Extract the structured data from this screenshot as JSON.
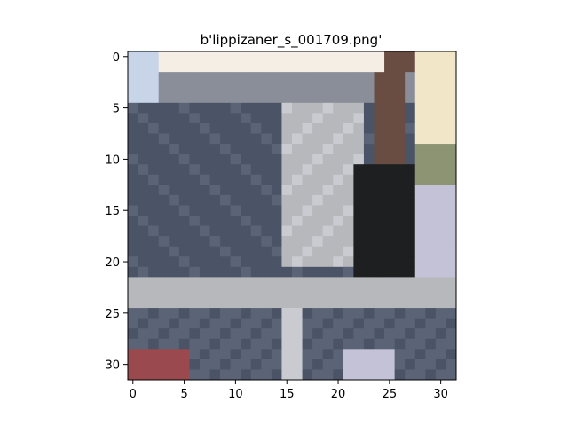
{
  "title": "b'lippizaner_s_001709.png'",
  "image": {
    "grid_size": 32,
    "description_colors": {
      "sky": "#efe8d6",
      "bright": "#f4eee4",
      "cream": "#f1e6c8",
      "dark_slate": "#4a5466",
      "slate": "#5a6476",
      "mid_gray": "#8a8e98",
      "light_gray": "#b6b8bc",
      "silver": "#c9cbd0",
      "black": "#1e1f20",
      "pale_blue": "#c8d4e8",
      "brown": "#6a4d42",
      "red": "#9a4a4e",
      "olive": "#8c9474",
      "lavender": "#c3c2d6"
    }
  },
  "axes": {
    "x_ticks": [
      "0",
      "5",
      "10",
      "15",
      "20",
      "25",
      "30"
    ],
    "y_ticks": [
      "0",
      "5",
      "10",
      "15",
      "20",
      "25",
      "30"
    ]
  }
}
